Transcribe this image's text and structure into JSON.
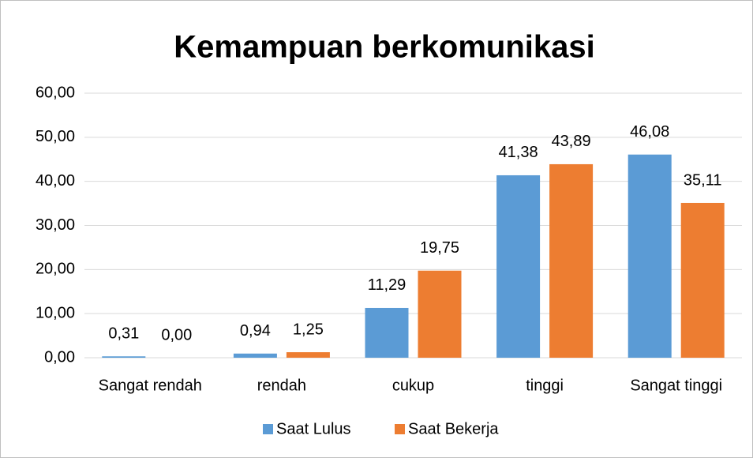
{
  "chart_data": {
    "type": "bar",
    "title": "Kemampuan berkomunikasi",
    "categories": [
      "Sangat rendah",
      "rendah",
      "cukup",
      "tinggi",
      "Sangat tinggi"
    ],
    "series": [
      {
        "name": "Saat Lulus",
        "color": "#5b9bd5",
        "values": [
          0.31,
          0.94,
          11.29,
          41.38,
          46.08
        ],
        "value_labels": [
          "0,31",
          "0,94",
          "11,29",
          "41,38",
          "46,08"
        ]
      },
      {
        "name": "Saat Bekerja",
        "color": "#ed7d31",
        "values": [
          0,
          1.25,
          19.75,
          43.89,
          35.11
        ],
        "value_labels": [
          "0,00",
          "1,25",
          "19,75",
          "43,89",
          "35,11"
        ]
      }
    ],
    "ylim": [
      0,
      60
    ],
    "yticks": [
      {
        "value": 0,
        "label": "0,00"
      },
      {
        "value": 10,
        "label": "10,00"
      },
      {
        "value": 20,
        "label": "20,00"
      },
      {
        "value": 30,
        "label": "30,00"
      },
      {
        "value": 40,
        "label": "40,00"
      },
      {
        "value": 50,
        "label": "50,00"
      },
      {
        "value": 60,
        "label": "60,00"
      }
    ],
    "grid": true,
    "legend": "bottom"
  }
}
